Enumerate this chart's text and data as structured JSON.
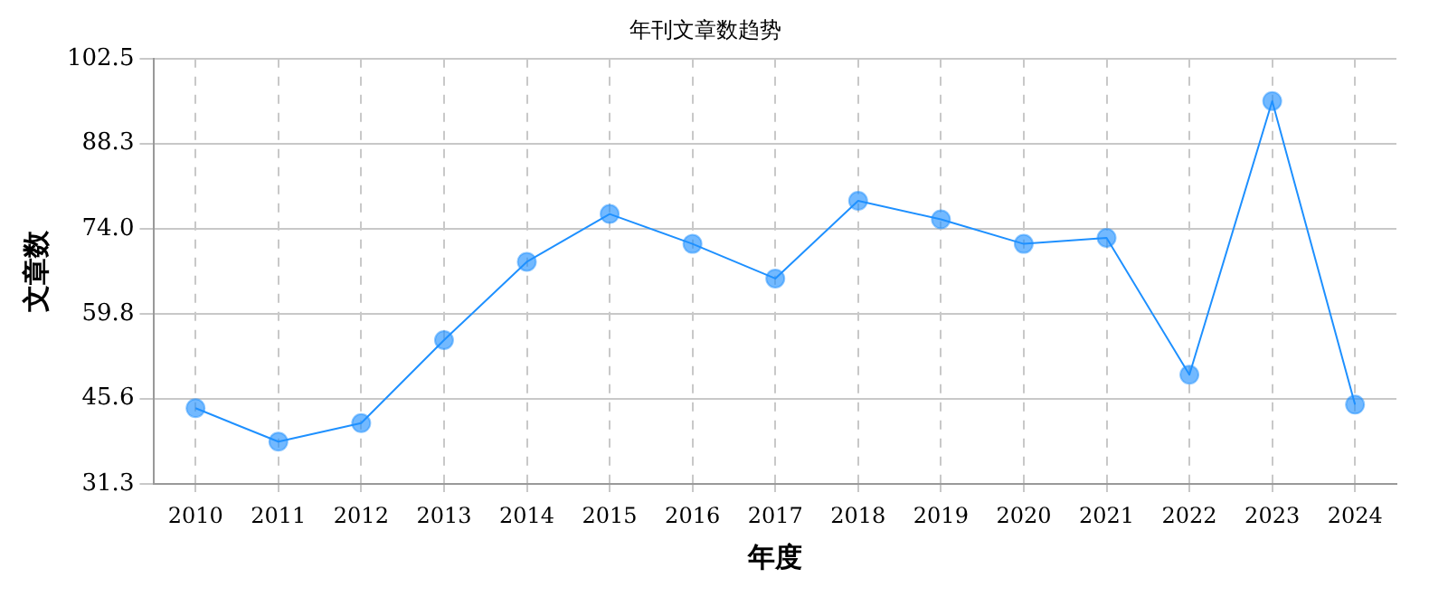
{
  "chart_data": {
    "type": "line",
    "title": "年刊文章数趋势",
    "xlabel": "年度",
    "ylabel": "文章数",
    "categories": [
      "2010",
      "2011",
      "2012",
      "2013",
      "2014",
      "2015",
      "2016",
      "2017",
      "2018",
      "2019",
      "2020",
      "2021",
      "2022",
      "2023",
      "2024"
    ],
    "series": [
      {
        "color": "#1e90ff",
        "values": [
          44.0,
          38.4,
          41.5,
          55.4,
          68.5,
          76.5,
          71.5,
          65.7,
          78.7,
          75.6,
          71.5,
          72.5,
          49.6,
          95.4,
          44.6
        ]
      }
    ],
    "ylim": [
      31.3,
      102.5
    ],
    "yticks": [
      31.3,
      45.6,
      59.8,
      {
        "value": 74,
        "label": "74.0"
      },
      88.3,
      102.5
    ],
    "grid": true,
    "marker": "circle",
    "line_style": "solid"
  }
}
